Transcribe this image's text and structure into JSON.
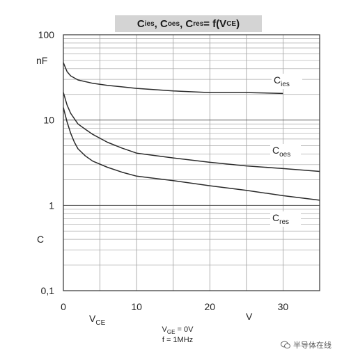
{
  "chart_data": {
    "type": "line",
    "title": {
      "parts": [
        "C",
        "ies",
        ", C",
        "oes",
        ", C",
        "res",
        " = f(V",
        "CE",
        ")"
      ]
    },
    "x_axis": {
      "range": [
        0,
        35
      ],
      "ticks": [
        0,
        10,
        20,
        30
      ],
      "label_main": "V",
      "label_sub": "CE",
      "unit": "V"
    },
    "y_axis": {
      "scale": "log",
      "range": [
        0.1,
        100
      ],
      "ticks": [
        {
          "v": 100,
          "t": "100"
        },
        {
          "v": 10,
          "t": "10"
        },
        {
          "v": 1,
          "t": "1"
        },
        {
          "v": 0.1,
          "t": "0,1"
        }
      ],
      "unit": "nF",
      "symbol": "C"
    },
    "grid": true,
    "series": [
      {
        "label_main": "C",
        "label_sub": "ies",
        "x": [
          0,
          0.5,
          1,
          2,
          4,
          6,
          8,
          10,
          15,
          20,
          25,
          30
        ],
        "y": [
          47,
          37,
          33,
          29.5,
          27,
          25.5,
          24.5,
          23.5,
          22,
          21,
          21,
          20.5
        ]
      },
      {
        "label_main": "C",
        "label_sub": "oes",
        "x": [
          0,
          0.5,
          1,
          2,
          3,
          4,
          6,
          8,
          10,
          15,
          20,
          25,
          30,
          35
        ],
        "y": [
          21,
          15,
          12,
          9,
          7.8,
          6.8,
          5.5,
          4.7,
          4.1,
          3.6,
          3.2,
          2.9,
          2.7,
          2.5
        ]
      },
      {
        "label_main": "C",
        "label_sub": "res",
        "x": [
          0,
          0.5,
          1,
          1.5,
          2,
          3,
          4,
          6,
          8,
          10,
          15,
          20,
          25,
          30,
          35
        ],
        "y": [
          14,
          9.5,
          7,
          5.5,
          4.6,
          3.8,
          3.3,
          2.8,
          2.45,
          2.2,
          1.95,
          1.7,
          1.5,
          1.3,
          1.15
        ]
      }
    ],
    "conditions": [
      {
        "main": "V",
        "sub": "GE",
        "rest": " = 0V"
      },
      {
        "main": "f = 1MHz",
        "sub": "",
        "rest": ""
      }
    ]
  },
  "watermark": "半导体在线"
}
